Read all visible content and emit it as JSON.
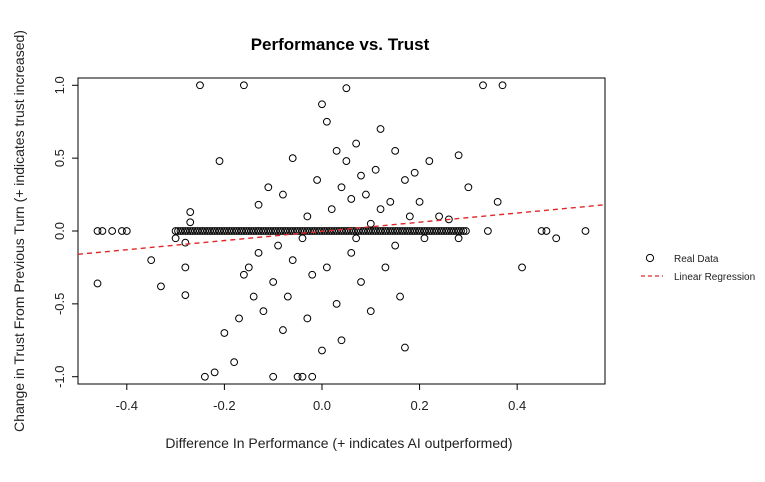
{
  "chart_data": {
    "type": "scatter",
    "title": "Performance vs. Trust",
    "xlabel": "Difference In Performance (+ indicates AI outperformed)",
    "ylabel": "Change in Trust From Previous Turn (+ indicates trust increased)",
    "xlim": [
      -0.5,
      0.58
    ],
    "ylim": [
      -1.05,
      1.05
    ],
    "x_ticks": [
      -0.4,
      -0.2,
      0.0,
      0.2,
      0.4
    ],
    "x_tick_labels": [
      "-0.4",
      "-0.2",
      "0.0",
      "0.2",
      "0.4"
    ],
    "y_ticks": [
      -1.0,
      -0.5,
      0.0,
      0.5,
      1.0
    ],
    "y_tick_labels": [
      "-1.0",
      "-0.5",
      "0.0",
      "0.5",
      "1.0"
    ],
    "grid": false,
    "legend_position": "right",
    "series": [
      {
        "name": "Real Data",
        "marker": "open-circle",
        "color": "#000000",
        "points": [
          [
            -0.46,
            0.0
          ],
          [
            -0.45,
            0.0
          ],
          [
            -0.43,
            0.0
          ],
          [
            -0.41,
            0.0
          ],
          [
            -0.4,
            0.0
          ],
          [
            -0.46,
            -0.36
          ],
          [
            -0.35,
            -0.2
          ],
          [
            -0.33,
            -0.38
          ],
          [
            -0.3,
            -0.05
          ],
          [
            -0.28,
            -0.08
          ],
          [
            -0.28,
            -0.25
          ],
          [
            -0.28,
            -0.44
          ],
          [
            -0.27,
            0.13
          ],
          [
            -0.27,
            0.06
          ],
          [
            -0.25,
            1.0
          ],
          [
            -0.24,
            -1.0
          ],
          [
            -0.22,
            -0.97
          ],
          [
            -0.21,
            0.48
          ],
          [
            -0.2,
            -0.7
          ],
          [
            -0.18,
            -0.9
          ],
          [
            -0.17,
            -0.6
          ],
          [
            -0.16,
            -0.3
          ],
          [
            -0.16,
            1.0
          ],
          [
            -0.15,
            -0.25
          ],
          [
            -0.14,
            -0.45
          ],
          [
            -0.13,
            0.18
          ],
          [
            -0.13,
            -0.15
          ],
          [
            -0.12,
            -0.55
          ],
          [
            -0.11,
            0.3
          ],
          [
            -0.1,
            -1.0
          ],
          [
            -0.1,
            -0.35
          ],
          [
            -0.09,
            -0.1
          ],
          [
            -0.08,
            0.25
          ],
          [
            -0.08,
            -0.68
          ],
          [
            -0.07,
            -0.45
          ],
          [
            -0.06,
            0.5
          ],
          [
            -0.06,
            -0.2
          ],
          [
            -0.05,
            -1.0
          ],
          [
            -0.04,
            -0.05
          ],
          [
            -0.04,
            -1.0
          ],
          [
            -0.03,
            0.1
          ],
          [
            -0.03,
            -0.6
          ],
          [
            -0.02,
            -0.3
          ],
          [
            -0.02,
            -1.0
          ],
          [
            -0.01,
            0.35
          ],
          [
            0.0,
            -0.82
          ],
          [
            0.0,
            0.87
          ],
          [
            0.01,
            0.75
          ],
          [
            0.01,
            -0.25
          ],
          [
            0.02,
            0.15
          ],
          [
            0.03,
            0.55
          ],
          [
            0.03,
            -0.5
          ],
          [
            0.04,
            0.3
          ],
          [
            0.04,
            -0.75
          ],
          [
            0.05,
            0.98
          ],
          [
            0.05,
            0.48
          ],
          [
            0.06,
            -0.15
          ],
          [
            0.06,
            0.22
          ],
          [
            0.07,
            -0.05
          ],
          [
            0.07,
            0.6
          ],
          [
            0.08,
            0.38
          ],
          [
            0.08,
            -0.35
          ],
          [
            0.09,
            0.25
          ],
          [
            0.1,
            0.05
          ],
          [
            0.1,
            -0.55
          ],
          [
            0.11,
            0.42
          ],
          [
            0.12,
            0.15
          ],
          [
            0.12,
            0.7
          ],
          [
            0.13,
            -0.25
          ],
          [
            0.14,
            0.2
          ],
          [
            0.15,
            0.55
          ],
          [
            0.15,
            -0.1
          ],
          [
            0.16,
            -0.45
          ],
          [
            0.17,
            0.35
          ],
          [
            0.17,
            -0.8
          ],
          [
            0.18,
            0.1
          ],
          [
            0.19,
            0.4
          ],
          [
            0.2,
            0.2
          ],
          [
            0.21,
            -0.05
          ],
          [
            0.22,
            0.48
          ],
          [
            0.24,
            0.1
          ],
          [
            0.26,
            0.08
          ],
          [
            0.28,
            0.52
          ],
          [
            0.28,
            -0.05
          ],
          [
            0.3,
            0.3
          ],
          [
            0.33,
            1.0
          ],
          [
            0.34,
            0.0
          ],
          [
            0.36,
            0.2
          ],
          [
            0.37,
            1.0
          ],
          [
            0.41,
            -0.25
          ],
          [
            0.45,
            0.0
          ],
          [
            0.46,
            0.0
          ],
          [
            0.48,
            -0.05
          ],
          [
            0.54,
            0.0
          ]
        ]
      },
      {
        "name": "Linear Regression",
        "line_style": "dashed",
        "color": "#e0282a",
        "x": [
          -0.5,
          0.58
        ],
        "y": [
          -0.16,
          0.18
        ]
      }
    ]
  }
}
